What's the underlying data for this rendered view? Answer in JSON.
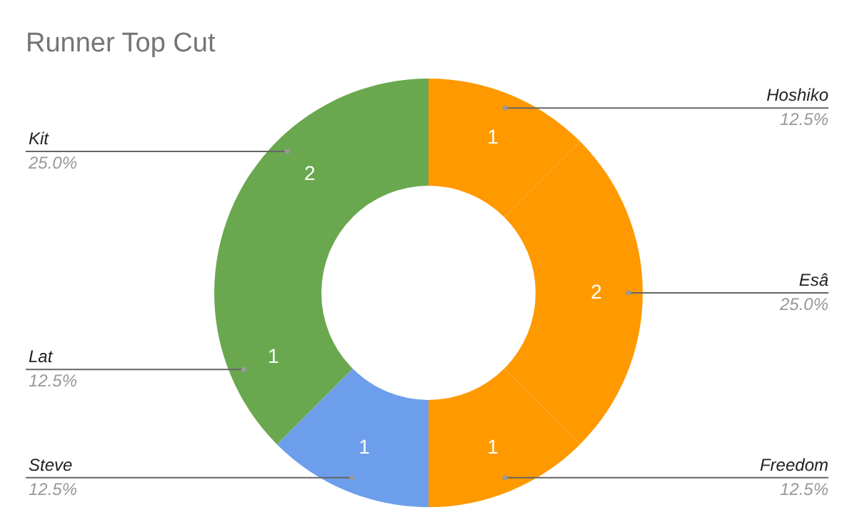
{
  "chart_data": {
    "type": "donut",
    "title": "Runner Top Cut",
    "categories": [
      "Hoshiko",
      "Esâ",
      "Freedom",
      "Steve",
      "Lat",
      "Kit"
    ],
    "values": [
      1,
      2,
      1,
      1,
      1,
      2
    ],
    "colors": [
      "#ff9900",
      "#ff9900",
      "#ff9900",
      "#6d9eeb",
      "#6aa84f",
      "#6aa84f"
    ],
    "data_labels": true,
    "annotations": [
      "12.5%",
      "25.0%",
      "12.5%",
      "12.5%",
      "12.5%",
      "25.0%"
    ],
    "legend": false
  }
}
